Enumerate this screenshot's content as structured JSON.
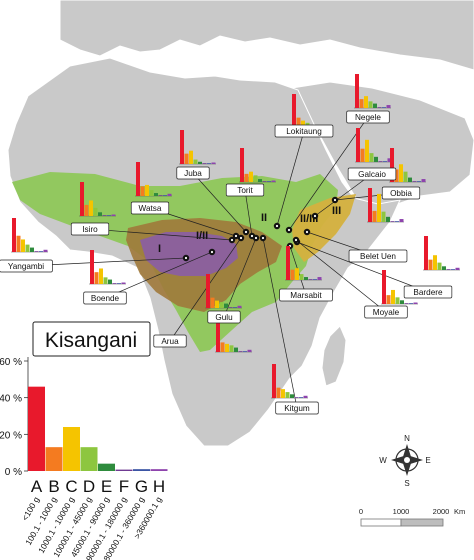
{
  "region_labels": {
    "I": "I",
    "I_II": "I/II",
    "II": "II",
    "II_III": "II/III",
    "III": "III"
  },
  "sites": [
    {
      "id": "lokitaung",
      "label": "Lokitaung",
      "region": "II",
      "values": [
        0.46,
        0.14,
        0.1,
        0.07,
        0.04,
        0.01,
        0.01,
        0.03
      ]
    },
    {
      "id": "negele",
      "label": "Negele",
      "region": "II/III",
      "values": [
        0.46,
        0.12,
        0.16,
        0.09,
        0.06,
        0.01,
        0.01,
        0.04
      ]
    },
    {
      "id": "juba",
      "label": "Juba",
      "region": "I/II",
      "values": [
        0.46,
        0.14,
        0.18,
        0.06,
        0.03,
        0.01,
        0.01,
        0.02
      ]
    },
    {
      "id": "torit",
      "label": "Torit",
      "region": "II",
      "values": [
        0.46,
        0.11,
        0.14,
        0.09,
        0.04,
        0.01,
        0.01,
        0.02
      ]
    },
    {
      "id": "galcaio",
      "label": "Galcaio",
      "region": "III",
      "values": [
        0.46,
        0.18,
        0.3,
        0.12,
        0.07,
        0.01,
        0.01,
        0.05
      ]
    },
    {
      "id": "obbia",
      "label": "Obbia",
      "region": "III",
      "values": [
        0.46,
        0.17,
        0.24,
        0.14,
        0.06,
        0.01,
        0.01,
        0.04
      ]
    },
    {
      "id": "watsa",
      "label": "Watsa",
      "region": "I/II",
      "values": [
        0.46,
        0.13,
        0.15,
        0.08,
        0.04,
        0.01,
        0.01,
        0.03
      ]
    },
    {
      "id": "isiro",
      "label": "Isiro",
      "region": "I",
      "values": [
        0.46,
        0.15,
        0.21,
        0.11,
        0.05,
        0.01,
        0.01,
        0.02
      ]
    },
    {
      "id": "yangambi",
      "label": "Yangambi",
      "region": "I",
      "values": [
        0.46,
        0.22,
        0.17,
        0.1,
        0.06,
        0.01,
        0.01,
        0.03
      ]
    },
    {
      "id": "belet_uen",
      "label": "Belet Uen",
      "region": "III",
      "values": [
        0.46,
        0.15,
        0.38,
        0.14,
        0.07,
        0.01,
        0.01,
        0.04
      ]
    },
    {
      "id": "boende",
      "label": "Boende",
      "region": "I",
      "values": [
        0.46,
        0.16,
        0.21,
        0.09,
        0.06,
        0.01,
        0.01,
        0.02
      ]
    },
    {
      "id": "bardere",
      "label": "Bardere",
      "region": "II/III",
      "values": [
        0.46,
        0.14,
        0.2,
        0.1,
        0.05,
        0.01,
        0.01,
        0.03
      ]
    },
    {
      "id": "marsabit",
      "label": "Marsabit",
      "region": "II",
      "values": [
        0.46,
        0.14,
        0.16,
        0.08,
        0.04,
        0.01,
        0.01,
        0.04
      ]
    },
    {
      "id": "moyale",
      "label": "Moyale",
      "region": "II",
      "values": [
        0.46,
        0.12,
        0.19,
        0.09,
        0.05,
        0.01,
        0.01,
        0.02
      ]
    },
    {
      "id": "gulu",
      "label": "Gulu",
      "region": "II",
      "values": [
        0.46,
        0.14,
        0.1,
        0.08,
        0.06,
        0.01,
        0.01,
        0.03
      ]
    },
    {
      "id": "arua",
      "label": "Arua",
      "region": "I/II",
      "values": [
        0.46,
        0.13,
        0.11,
        0.09,
        0.06,
        0.01,
        0.01,
        0.03
      ]
    },
    {
      "id": "kitgum",
      "label": "Kitgum",
      "region": "II",
      "values": [
        0.46,
        0.14,
        0.12,
        0.08,
        0.05,
        0.01,
        0.01,
        0.03
      ]
    }
  ],
  "featured_site": {
    "label": "Kisangani",
    "chart": {
      "type": "bar",
      "categories": [
        "A",
        "B",
        "C",
        "D",
        "E",
        "F",
        "G",
        "H"
      ],
      "category_ranges": [
        "<100 g",
        "100.1 - 1000 g",
        "1000.1 - 10000 g",
        "10000.1 - 45000 g",
        "45000.1 - 90000 g",
        "90000.1 - 180000 g",
        "180000.1 - 360000 g",
        ">360000.1 g"
      ],
      "values": [
        0.46,
        0.13,
        0.24,
        0.13,
        0.04,
        0.0,
        0.01,
        0.01
      ],
      "y_ticks": [
        "60 %",
        "40 %",
        "20 %",
        "0 %"
      ],
      "ylim": [
        0,
        0.6
      ]
    }
  },
  "bar_colors": [
    "#e8192c",
    "#f47b20",
    "#f5c400",
    "#8dc63f",
    "#2e8b3d",
    "#6f3a92",
    "#3b55a4",
    "#8e44ad"
  ],
  "compass": {
    "n": "N",
    "s": "S",
    "e": "E",
    "w": "W"
  },
  "scale_bar": {
    "ticks": [
      "0",
      "1000",
      "2000"
    ],
    "unit": "Km"
  },
  "colors": {
    "land": "#c9c9c9",
    "sea": "#ffffff",
    "region_green": "#8fc85a",
    "region_brown": "#a0793b",
    "region_purple": "#8b5fa0",
    "region_yellow": "#d5b13e"
  }
}
